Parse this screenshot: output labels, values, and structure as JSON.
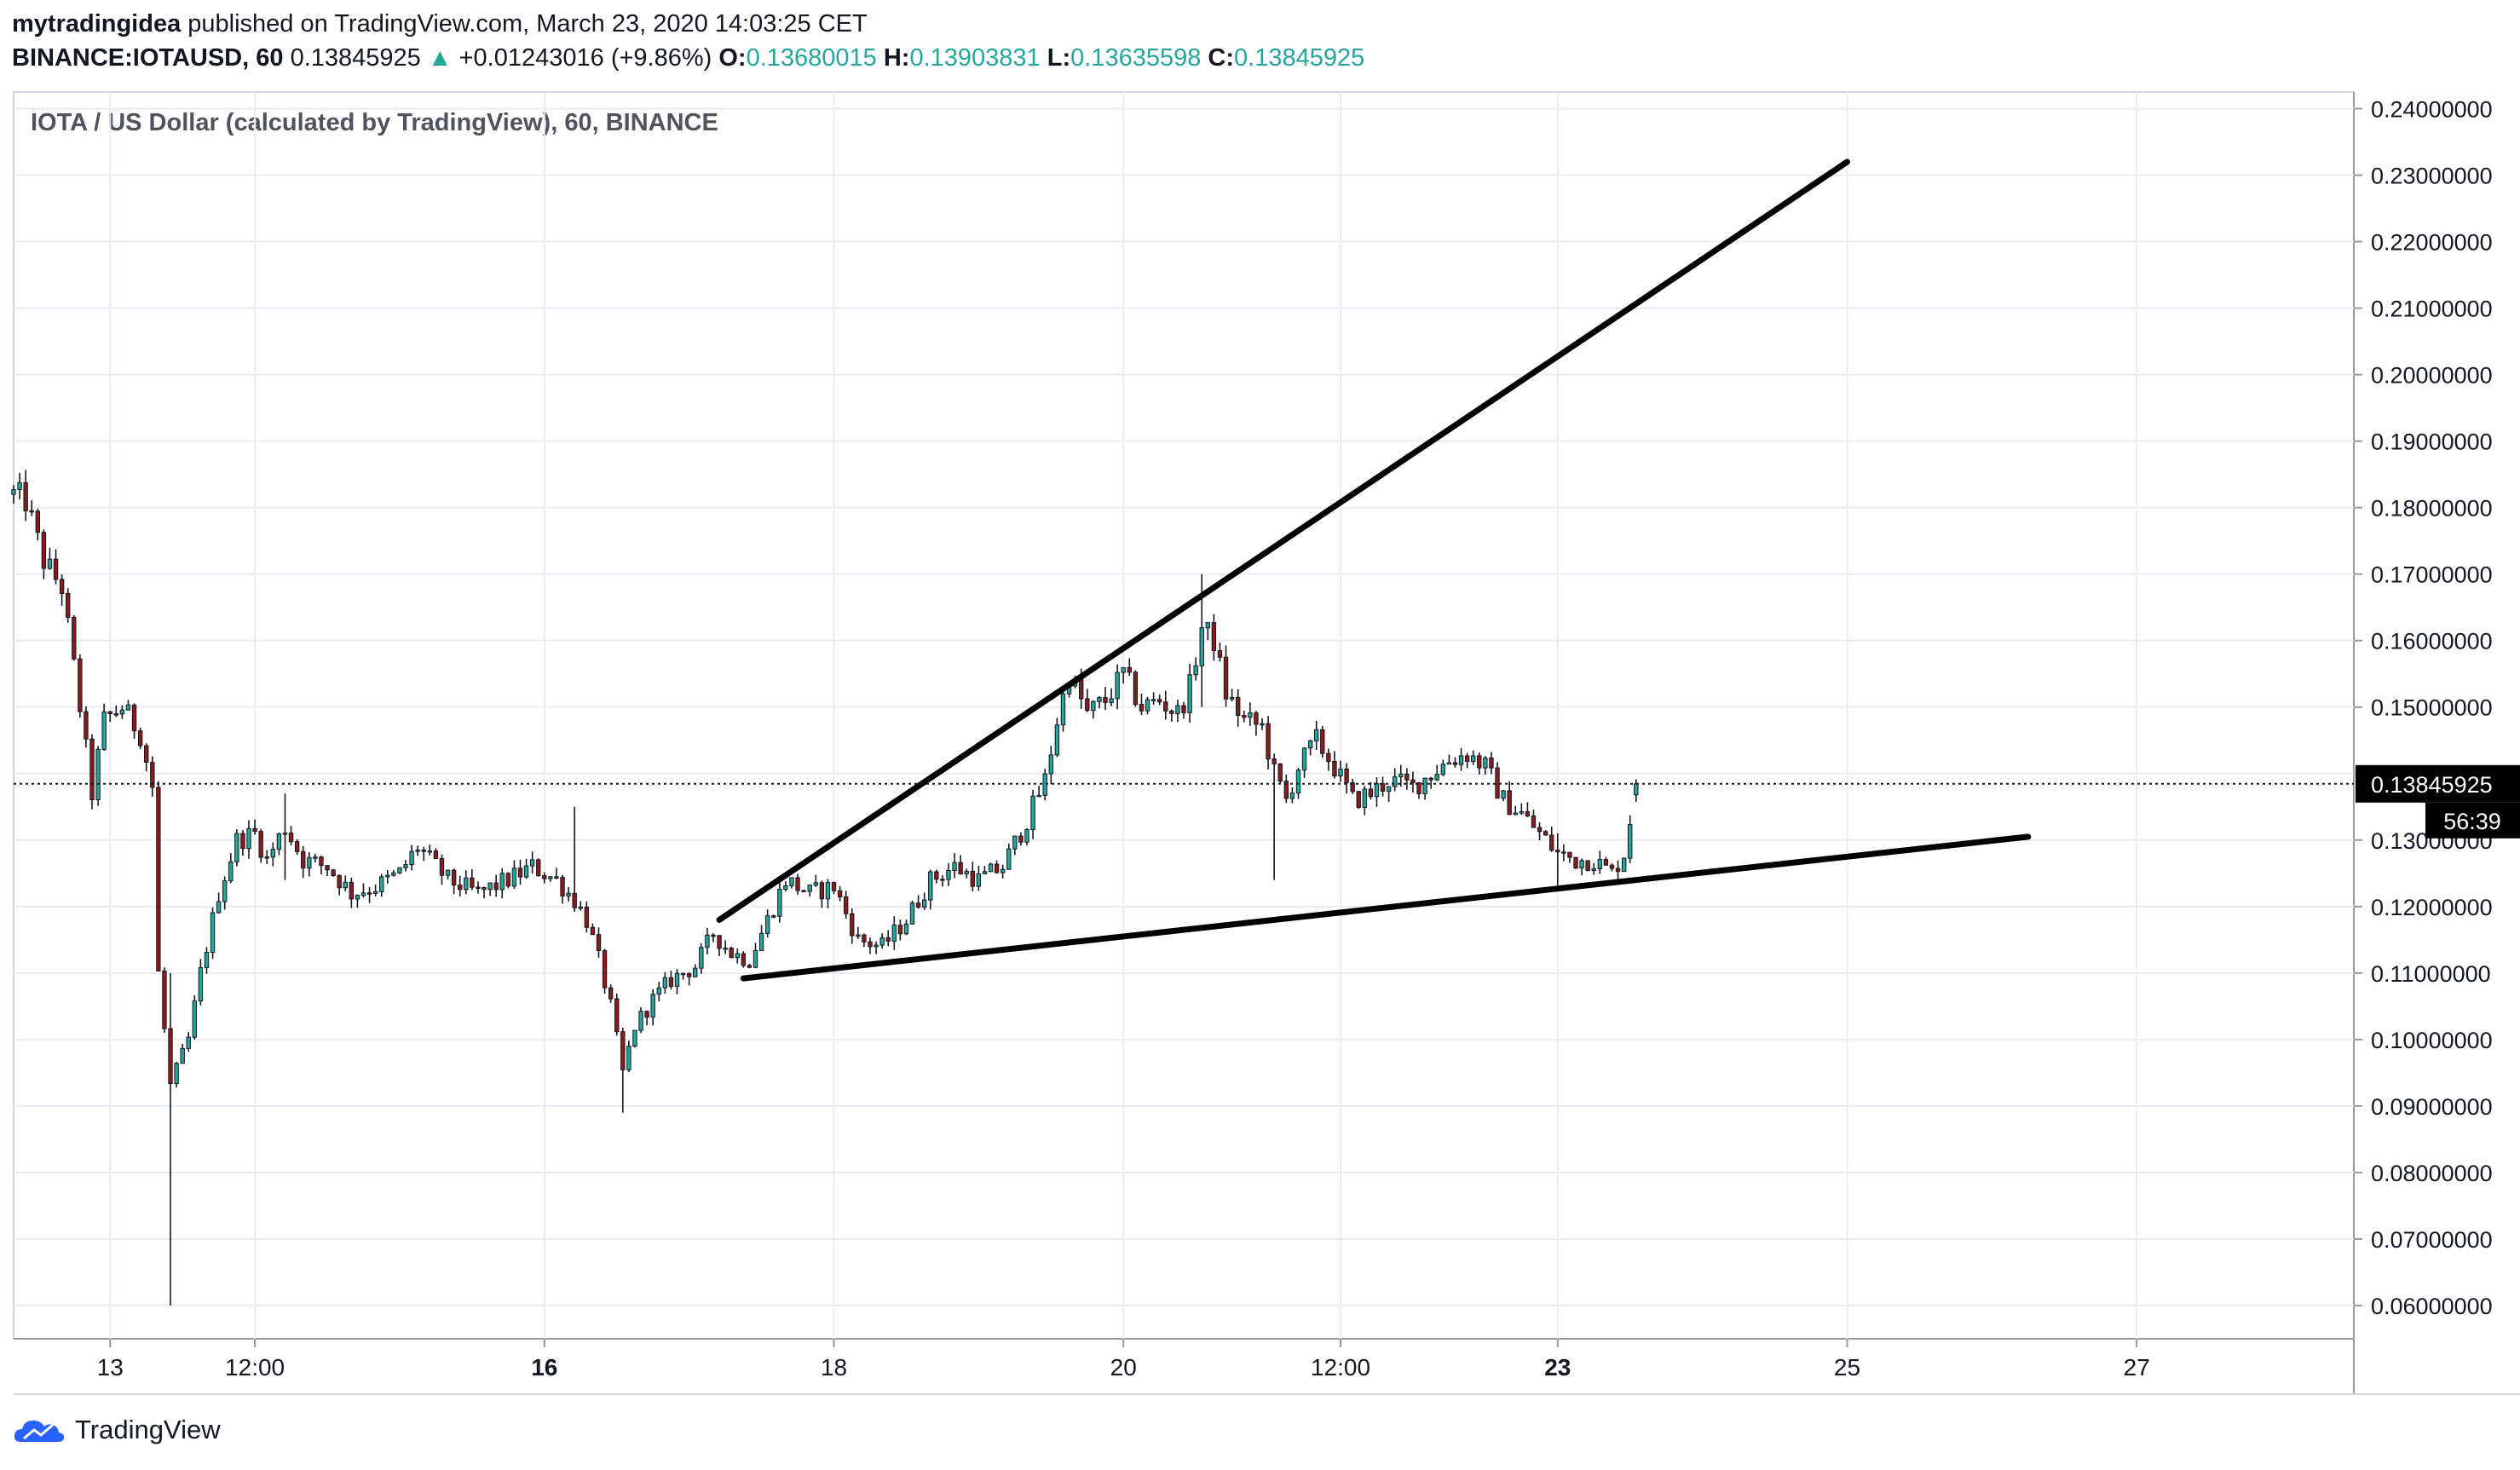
{
  "header": {
    "author": "mytradingidea",
    "published_text": "published on TradingView.com, March 23, 2020 14:03:25 CET",
    "symbol": "BINANCE:IOTAUSD, 60",
    "last": "0.13845925",
    "change_arrow": "▲",
    "change": "+0.01243016 (+9.86%)",
    "o_label": "O:",
    "o_value": "0.13680015",
    "h_label": "H:",
    "h_value": "0.13903831",
    "l_label": "L:",
    "l_value": "0.13635598",
    "c_label": "C:",
    "c_value": "0.13845925"
  },
  "footer": {
    "brand": "TradingView"
  },
  "colors": {
    "up": "#26a69a",
    "down": "#ef5350",
    "candle_up_body": "#26a69a",
    "candle_down_body": "#8b1c1c",
    "grid": "#e8edf3",
    "text": "#131722"
  },
  "chart_data": {
    "type": "candlestick",
    "title": "IOTA / US Dollar (calculated by TradingView), 60, BINANCE",
    "ylim": [
      0.055,
      0.2425
    ],
    "y_ticks": [
      "0.24000000",
      "0.23000000",
      "0.22000000",
      "0.21000000",
      "0.20000000",
      "0.19000000",
      "0.18000000",
      "0.17000000",
      "0.16000000",
      "0.15000000",
      "0.14000000",
      "0.13000000",
      "0.12000000",
      "0.11000000",
      "0.10000000",
      "0.09000000",
      "0.08000000",
      "0.07000000",
      "0.06000000"
    ],
    "x_range": [
      "2020-03-12T08:00",
      "2020-03-28T12:00"
    ],
    "x_ticks": [
      {
        "label": "13",
        "at": "2020-03-13T00:00",
        "bold": false
      },
      {
        "label": "12:00",
        "at": "2020-03-14T00:00",
        "bold": false
      },
      {
        "label": "16",
        "at": "2020-03-16T00:00",
        "bold": true
      },
      {
        "label": "18",
        "at": "2020-03-18T00:00",
        "bold": false
      },
      {
        "label": "20",
        "at": "2020-03-20T00:00",
        "bold": false
      },
      {
        "label": "12:00",
        "at": "2020-03-21T12:00",
        "bold": false
      },
      {
        "label": "23",
        "at": "2020-03-23T00:00",
        "bold": true
      },
      {
        "label": "25",
        "at": "2020-03-25T00:00",
        "bold": false
      },
      {
        "label": "27",
        "at": "2020-03-27T00:00",
        "bold": false
      }
    ],
    "last_price_label": "0.13845925",
    "last_price": 0.13845925,
    "countdown": "56:39",
    "close_path": [
      [
        "2020-03-12T08:00",
        0.182
      ],
      [
        "2020-03-12T10:00",
        0.181
      ],
      [
        "2020-03-12T13:00",
        0.172
      ],
      [
        "2020-03-12T16:00",
        0.168
      ],
      [
        "2020-03-12T19:00",
        0.15
      ],
      [
        "2020-03-12T21:00",
        0.137
      ],
      [
        "2020-03-12T23:00",
        0.148
      ],
      [
        "2020-03-13T02:00",
        0.15
      ],
      [
        "2020-03-13T05:00",
        0.146
      ],
      [
        "2020-03-13T07:00",
        0.138
      ],
      [
        "2020-03-13T08:00",
        0.11
      ],
      [
        "2020-03-13T10:00",
        0.093
      ],
      [
        "2020-03-13T13:00",
        0.1
      ],
      [
        "2020-03-13T15:00",
        0.11
      ],
      [
        "2020-03-13T18:00",
        0.122
      ],
      [
        "2020-03-13T21:00",
        0.13
      ],
      [
        "2020-03-14T00:00",
        0.131
      ],
      [
        "2020-03-14T02:00",
        0.127
      ],
      [
        "2020-03-14T05:00",
        0.132
      ],
      [
        "2020-03-14T08:00",
        0.127
      ],
      [
        "2020-03-14T12:00",
        0.126
      ],
      [
        "2020-03-14T16:00",
        0.122
      ],
      [
        "2020-03-14T20:00",
        0.123
      ],
      [
        "2020-03-15T00:00",
        0.125
      ],
      [
        "2020-03-15T03:00",
        0.129
      ],
      [
        "2020-03-15T08:00",
        0.124
      ],
      [
        "2020-03-15T13:00",
        0.122
      ],
      [
        "2020-03-15T18:00",
        0.124
      ],
      [
        "2020-03-15T22:00",
        0.126
      ],
      [
        "2020-03-16T02:00",
        0.124
      ],
      [
        "2020-03-16T05:00",
        0.121
      ],
      [
        "2020-03-16T07:00",
        0.118
      ],
      [
        "2020-03-16T09:00",
        0.112
      ],
      [
        "2020-03-16T11:00",
        0.105
      ],
      [
        "2020-03-16T13:00",
        0.095
      ],
      [
        "2020-03-16T15:00",
        0.102
      ],
      [
        "2020-03-16T18:00",
        0.106
      ],
      [
        "2020-03-16T21:00",
        0.109
      ],
      [
        "2020-03-17T01:00",
        0.111
      ],
      [
        "2020-03-17T04:00",
        0.116
      ],
      [
        "2020-03-17T07:00",
        0.113
      ],
      [
        "2020-03-17T10:00",
        0.112
      ],
      [
        "2020-03-17T13:00",
        0.118
      ],
      [
        "2020-03-17T16:00",
        0.124
      ],
      [
        "2020-03-17T20:00",
        0.122
      ],
      [
        "2020-03-18T00:00",
        0.123
      ],
      [
        "2020-03-18T04:00",
        0.115
      ],
      [
        "2020-03-18T08:00",
        0.114
      ],
      [
        "2020-03-18T12:00",
        0.118
      ],
      [
        "2020-03-18T16:00",
        0.124
      ],
      [
        "2020-03-18T20:00",
        0.126
      ],
      [
        "2020-03-19T00:00",
        0.124
      ],
      [
        "2020-03-19T04:00",
        0.126
      ],
      [
        "2020-03-19T08:00",
        0.133
      ],
      [
        "2020-03-19T11:00",
        0.139
      ],
      [
        "2020-03-19T13:00",
        0.148
      ],
      [
        "2020-03-19T15:00",
        0.155
      ],
      [
        "2020-03-19T18:00",
        0.149
      ],
      [
        "2020-03-19T21:00",
        0.151
      ],
      [
        "2020-03-20T00:00",
        0.155
      ],
      [
        "2020-03-20T03:00",
        0.15
      ],
      [
        "2020-03-20T06:00",
        0.151
      ],
      [
        "2020-03-20T09:00",
        0.149
      ],
      [
        "2020-03-20T11:00",
        0.153
      ],
      [
        "2020-03-20T13:00",
        0.162
      ],
      [
        "2020-03-20T15:00",
        0.16
      ],
      [
        "2020-03-20T17:00",
        0.152
      ],
      [
        "2020-03-20T20:00",
        0.148
      ],
      [
        "2020-03-20T23:00",
        0.147
      ],
      [
        "2020-03-21T01:00",
        0.14
      ],
      [
        "2020-03-21T03:00",
        0.136
      ],
      [
        "2020-03-21T05:00",
        0.141
      ],
      [
        "2020-03-21T08:00",
        0.145
      ],
      [
        "2020-03-21T11:00",
        0.141
      ],
      [
        "2020-03-21T14:00",
        0.136
      ],
      [
        "2020-03-21T17:00",
        0.137
      ],
      [
        "2020-03-21T20:00",
        0.139
      ],
      [
        "2020-03-22T00:00",
        0.138
      ],
      [
        "2020-03-22T03:00",
        0.14
      ],
      [
        "2020-03-22T06:00",
        0.142
      ],
      [
        "2020-03-22T09:00",
        0.143
      ],
      [
        "2020-03-22T12:00",
        0.141
      ],
      [
        "2020-03-22T15:00",
        0.136
      ],
      [
        "2020-03-22T18:00",
        0.134
      ],
      [
        "2020-03-22T21:00",
        0.131
      ],
      [
        "2020-03-23T00:00",
        0.128
      ],
      [
        "2020-03-23T03:00",
        0.127
      ],
      [
        "2020-03-23T06:00",
        0.127
      ],
      [
        "2020-03-23T09:00",
        0.125
      ],
      [
        "2020-03-23T11:00",
        0.128
      ],
      [
        "2020-03-23T12:00",
        0.133
      ],
      [
        "2020-03-23T13:00",
        0.1385
      ]
    ],
    "wicks": [
      {
        "t": "2020-03-13T10:00",
        "low": 0.06,
        "high": 0.11
      },
      {
        "t": "2020-03-14T05:00",
        "low": 0.124,
        "high": 0.137
      },
      {
        "t": "2020-03-16T05:00",
        "low": 0.12,
        "high": 0.135
      },
      {
        "t": "2020-03-16T13:00",
        "low": 0.089,
        "high": 0.101
      },
      {
        "t": "2020-03-20T13:00",
        "low": 0.15,
        "high": 0.17
      },
      {
        "t": "2020-03-21T01:00",
        "low": 0.124,
        "high": 0.143
      },
      {
        "t": "2020-03-23T00:00",
        "low": 0.123,
        "high": 0.131
      }
    ],
    "trendlines": [
      {
        "t1": "2020-03-17T05:00",
        "p1": 0.118,
        "t2": "2020-03-25T00:00",
        "p2": 0.232
      },
      {
        "t1": "2020-03-17T09:00",
        "p1": 0.1092,
        "t2": "2020-03-26T06:00",
        "p2": 0.1305
      }
    ]
  }
}
